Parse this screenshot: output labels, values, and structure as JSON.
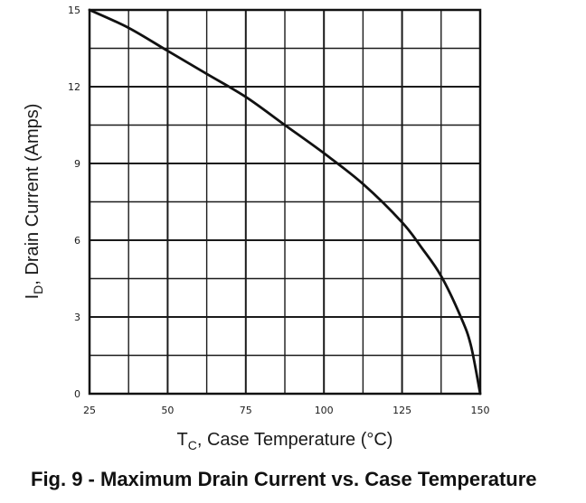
{
  "chart_data": {
    "type": "line",
    "title": "",
    "caption": "Fig. 9 - Maximum Drain Current vs. Case Temperature",
    "xlabel_main": "T",
    "xlabel_sub": "C",
    "xlabel_rest": ", Case Temperature (°C)",
    "ylabel_main": "I",
    "ylabel_sub": "D",
    "ylabel_rest": ", Drain Current (Amps)",
    "xlim": [
      25,
      150
    ],
    "ylim": [
      0,
      15
    ],
    "x_ticks": [
      25,
      50,
      75,
      100,
      125,
      150
    ],
    "y_ticks": [
      0,
      3,
      6,
      9,
      12,
      15
    ],
    "x_tick_labels": [
      "25",
      "50",
      "75",
      "100",
      "125",
      "150"
    ],
    "y_tick_labels": [
      "0",
      "3",
      "6",
      "9",
      "12",
      "15"
    ],
    "grid": true,
    "grid_x_step": 12.5,
    "grid_y_step": 1.5,
    "series": [
      {
        "name": "Maximum Drain Current",
        "x": [
          25,
          37.5,
          50,
          62.5,
          75,
          87.5,
          100,
          112.5,
          125,
          131.3,
          137.5,
          143.8,
          147,
          150
        ],
        "y": [
          15,
          14.3,
          13.4,
          12.5,
          11.6,
          10.5,
          9.4,
          8.2,
          6.7,
          5.7,
          4.6,
          3.0,
          1.9,
          0
        ]
      }
    ]
  }
}
